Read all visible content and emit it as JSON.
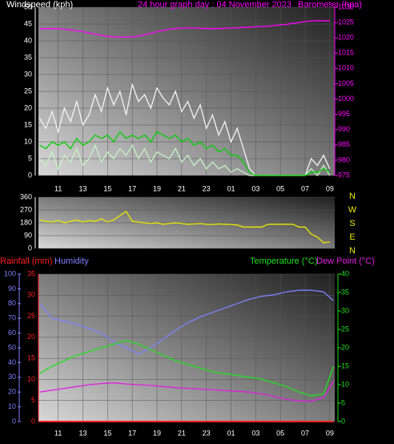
{
  "chart_data": [
    {
      "type": "line",
      "title": "24 hour graph day : 04 November 2023",
      "y_label": "Windspeed (kph)",
      "y2_label": "Barometer (hpa)",
      "xlim": [
        9.4,
        33.4
      ],
      "xticks": [
        11,
        13,
        15,
        17,
        19,
        21,
        23,
        {
          "value": 25,
          "label": "01"
        },
        {
          "value": 27,
          "label": "03"
        },
        {
          "value": 29,
          "label": "05"
        },
        {
          "value": 31,
          "label": "07"
        },
        {
          "value": 33,
          "label": "09"
        }
      ],
      "ylim": [
        0,
        50
      ],
      "yticks": [
        0,
        5,
        10,
        15,
        20,
        25,
        30,
        35,
        40,
        45,
        50
      ],
      "y2lim": [
        975,
        1030
      ],
      "y2ticks": [
        975,
        980,
        985,
        990,
        995,
        1000,
        1005,
        1010,
        1015,
        1020,
        1025,
        1030
      ],
      "grid": true,
      "x": [
        9.5,
        10,
        10.5,
        11,
        11.5,
        12,
        12.5,
        13,
        13.5,
        14,
        14.5,
        15,
        15.5,
        16,
        16.5,
        17,
        17.5,
        18,
        18.5,
        19,
        19.5,
        20,
        20.5,
        21,
        21.5,
        22,
        22.5,
        23,
        23.5,
        24,
        24.5,
        25,
        25.5,
        26,
        26.5,
        27,
        27.5,
        28,
        28.5,
        29,
        29.5,
        30,
        30.5,
        31,
        31.5,
        32,
        32.5,
        33
      ],
      "series": [
        {
          "color": "#f4f4f4",
          "values": [
            17,
            14,
            19,
            13,
            20,
            16,
            22,
            15,
            18,
            24,
            19,
            26,
            21,
            25,
            18,
            27,
            22,
            24,
            20,
            26,
            23,
            21,
            25,
            19,
            22,
            17,
            21,
            14,
            18,
            12,
            16,
            10,
            14,
            8,
            2,
            0,
            0,
            0,
            0,
            0,
            0,
            0,
            0,
            0,
            5,
            3,
            6,
            2
          ]
        },
        {
          "color": "#c8f0c8",
          "values": [
            5,
            3,
            7,
            2,
            6,
            4,
            8,
            3,
            5,
            9,
            4,
            7,
            5,
            8,
            6,
            9,
            5,
            8,
            4,
            7,
            6,
            5,
            8,
            4,
            6,
            3,
            5,
            2,
            4,
            2,
            3,
            1,
            2,
            1,
            0,
            0,
            0,
            0,
            0,
            0,
            0,
            0,
            0,
            0,
            2,
            0,
            3,
            0
          ]
        },
        {
          "color": "#00d000",
          "values": [
            9,
            8,
            10,
            9,
            10,
            8,
            11,
            9,
            10,
            12,
            11,
            12,
            10,
            13,
            11,
            12,
            11,
            12,
            10,
            13,
            12,
            11,
            12,
            10,
            11,
            9,
            10,
            8,
            9,
            7,
            8,
            6,
            6,
            4,
            1,
            0,
            0,
            0,
            0,
            0,
            0,
            0,
            0,
            0,
            1,
            1,
            2,
            1
          ]
        },
        {
          "color": "#ff00ff",
          "axis": "y2",
          "values": [
            1023,
            1023,
            1023,
            1023,
            1022.8,
            1022.6,
            1022.3,
            1022,
            1021.6,
            1021.2,
            1020.8,
            1020.5,
            1020.3,
            1020.2,
            1020.2,
            1020.3,
            1020.6,
            1021,
            1021.5,
            1022,
            1022.4,
            1022.8,
            1023,
            1023.2,
            1023.3,
            1023.2,
            1023.1,
            1023,
            1023,
            1023,
            1023.1,
            1023.2,
            1023.3,
            1023.4,
            1023.5,
            1023.6,
            1023.7,
            1023.8,
            1024,
            1024.2,
            1024.4,
            1024.7,
            1025,
            1025.3,
            1025.5,
            1025.6,
            1025.6,
            1025.5
          ]
        }
      ]
    },
    {
      "type": "line",
      "xlim": [
        9.4,
        33.4
      ],
      "ylim": [
        0,
        360
      ],
      "yticks": [
        0,
        90,
        180,
        270,
        360
      ],
      "grid": true,
      "compass": [
        "N",
        "W",
        "S",
        "E",
        "N"
      ],
      "x": [
        9.5,
        10,
        10.5,
        11,
        11.5,
        12,
        12.5,
        13,
        13.5,
        14,
        14.5,
        15,
        15.5,
        16,
        16.5,
        17,
        17.5,
        18,
        18.5,
        19,
        19.5,
        20,
        20.5,
        21,
        21.5,
        22,
        22.5,
        23,
        23.5,
        24,
        24.5,
        25,
        25.5,
        26,
        26.5,
        27,
        27.5,
        28,
        28.5,
        29,
        29.5,
        30,
        30.5,
        31,
        31.5,
        32,
        32.5,
        33
      ],
      "series": [
        {
          "color": "#e8e800",
          "values": [
            200,
            190,
            185,
            195,
            180,
            190,
            200,
            185,
            195,
            190,
            210,
            185,
            200,
            230,
            260,
            190,
            185,
            180,
            175,
            180,
            170,
            175,
            180,
            175,
            170,
            172,
            175,
            170,
            168,
            172,
            170,
            168,
            165,
            150,
            150,
            150,
            150,
            170,
            170,
            170,
            170,
            170,
            150,
            150,
            100,
            80,
            40,
            45
          ]
        }
      ]
    },
    {
      "type": "line",
      "xlim": [
        9.4,
        33.4
      ],
      "xticks": [
        11,
        13,
        15,
        17,
        19,
        21,
        23,
        {
          "value": 25,
          "label": "01"
        },
        {
          "value": 27,
          "label": "03"
        },
        {
          "value": 29,
          "label": "05"
        },
        {
          "value": 31,
          "label": "07"
        },
        {
          "value": 33,
          "label": "09"
        }
      ],
      "ylim": [
        0,
        35
      ],
      "yticks": [
        0,
        5,
        10,
        15,
        20,
        25,
        30,
        35
      ],
      "y2lim": [
        0,
        40
      ],
      "y2ticks": [
        0,
        5,
        10,
        15,
        20,
        25,
        30,
        35,
        40
      ],
      "y3lim": [
        0,
        100
      ],
      "y3ticks": [
        0,
        10,
        20,
        30,
        40,
        50,
        60,
        70,
        80,
        90,
        100
      ],
      "grid": true,
      "x": [
        9.5,
        10.5,
        11.5,
        12.5,
        13.5,
        14.5,
        15.5,
        16.5,
        17.5,
        18.5,
        19.5,
        20.5,
        21.5,
        22.5,
        23.5,
        24.5,
        25.5,
        26.5,
        27.5,
        28.5,
        29.5,
        30.5,
        31.5,
        32.5,
        33.3
      ],
      "series": [
        {
          "name": "Rainfall (mm)",
          "color": "#ff2020",
          "values": [
            0,
            0,
            0,
            0,
            0,
            0,
            0,
            0,
            0,
            0,
            0,
            0,
            0,
            0,
            0,
            0,
            0,
            0,
            0,
            0,
            0,
            0,
            0,
            0,
            0
          ]
        },
        {
          "name": "Humidity",
          "color": "#8080ff",
          "axis": "y3",
          "values": [
            80,
            70,
            68,
            66,
            63,
            60,
            54,
            50,
            46,
            50,
            56,
            62,
            67,
            71,
            74,
            77,
            80,
            83,
            85,
            86,
            88,
            89,
            89,
            88,
            82
          ]
        },
        {
          "name": "Temperature (°C)",
          "color": "#20e020",
          "axis": "y2",
          "values": [
            13,
            15,
            16.5,
            18,
            19,
            20,
            21,
            22,
            21,
            19.5,
            18,
            16.5,
            15.5,
            14.5,
            13.5,
            13,
            12.5,
            12,
            11.5,
            10.5,
            9.5,
            8,
            7,
            7.5,
            15
          ]
        },
        {
          "name": "Dew Point (°C)",
          "color": "#e020e0",
          "axis": "y2",
          "values": [
            8,
            8.5,
            9,
            9.5,
            10,
            10.3,
            10.5,
            10.2,
            10,
            9.8,
            9.5,
            9.2,
            9,
            8.8,
            8.6,
            8.4,
            8.2,
            8,
            7.5,
            6.8,
            6,
            5.6,
            5.5,
            6.5,
            11
          ]
        }
      ]
    }
  ]
}
